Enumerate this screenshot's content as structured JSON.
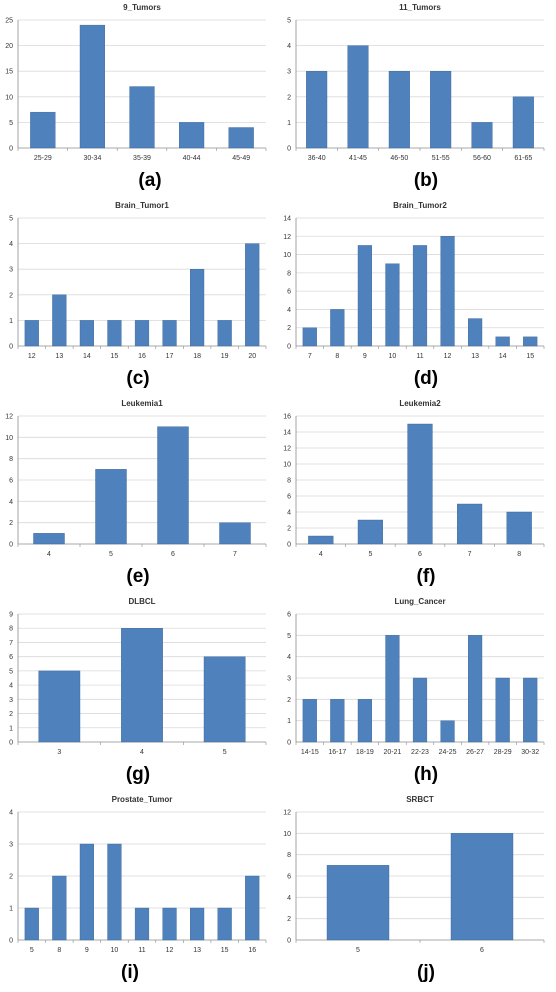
{
  "bar_color": "#4f81bd",
  "grid_color": "#d9d9d9",
  "axis_color": "#8c8c8c",
  "chart_data": [
    {
      "type": "bar",
      "panel_label": "(a)",
      "title": "9_Tumors",
      "categories": [
        "25-29",
        "30-34",
        "35-39",
        "40-44",
        "45-49"
      ],
      "values": [
        7,
        24,
        12,
        5,
        4
      ],
      "ylim": [
        0,
        25
      ],
      "yticks": [
        0,
        5,
        10,
        15,
        20,
        25
      ],
      "grid": true
    },
    {
      "type": "bar",
      "panel_label": "(b)",
      "title": "11_Tumors",
      "categories": [
        "36-40",
        "41-45",
        "46-50",
        "51-55",
        "56-60",
        "61-65"
      ],
      "values": [
        3,
        4,
        3,
        3,
        1,
        2
      ],
      "ylim": [
        0,
        5
      ],
      "yticks": [
        0,
        1,
        2,
        3,
        4,
        5
      ],
      "grid": true
    },
    {
      "type": "bar",
      "panel_label": "(c)",
      "title": "Brain_Tumor1",
      "categories": [
        "12",
        "13",
        "14",
        "15",
        "16",
        "17",
        "18",
        "19",
        "20"
      ],
      "values": [
        1,
        2,
        1,
        1,
        1,
        1,
        3,
        1,
        4
      ],
      "ylim": [
        0,
        5
      ],
      "yticks": [
        0,
        1,
        2,
        3,
        4,
        5
      ],
      "grid": true
    },
    {
      "type": "bar",
      "panel_label": "(d)",
      "title": "Brain_Tumor2",
      "categories": [
        "7",
        "8",
        "9",
        "10",
        "11",
        "12",
        "13",
        "14",
        "15"
      ],
      "values": [
        2,
        4,
        11,
        9,
        11,
        12,
        3,
        1,
        1
      ],
      "ylim": [
        0,
        14
      ],
      "yticks": [
        0,
        2,
        4,
        6,
        8,
        10,
        12,
        14
      ],
      "grid": true
    },
    {
      "type": "bar",
      "panel_label": "(e)",
      "title": "Leukemia1",
      "categories": [
        "4",
        "5",
        "6",
        "7"
      ],
      "values": [
        1,
        7,
        11,
        2
      ],
      "ylim": [
        0,
        12
      ],
      "yticks": [
        0,
        2,
        4,
        6,
        8,
        10,
        12
      ],
      "grid": true
    },
    {
      "type": "bar",
      "panel_label": "(f)",
      "title": "Leukemia2",
      "categories": [
        "4",
        "5",
        "6",
        "7",
        "8"
      ],
      "values": [
        1,
        3,
        15,
        5,
        4
      ],
      "ylim": [
        0,
        16
      ],
      "yticks": [
        0,
        2,
        4,
        6,
        8,
        10,
        12,
        14,
        16
      ],
      "grid": true
    },
    {
      "type": "bar",
      "panel_label": "(g)",
      "title": "DLBCL",
      "categories": [
        "3",
        "4",
        "5"
      ],
      "values": [
        5,
        8,
        6
      ],
      "ylim": [
        0,
        9
      ],
      "yticks": [
        0,
        1,
        2,
        3,
        4,
        5,
        6,
        7,
        8,
        9
      ],
      "grid": true
    },
    {
      "type": "bar",
      "panel_label": "(h)",
      "title": "Lung_Cancer",
      "categories": [
        "14-15",
        "16-17",
        "18-19",
        "20-21",
        "22-23",
        "24-25",
        "26-27",
        "28-29",
        "30-32"
      ],
      "values": [
        2,
        2,
        2,
        5,
        3,
        1,
        5,
        3,
        3
      ],
      "ylim": [
        0,
        6
      ],
      "yticks": [
        0,
        1,
        2,
        3,
        4,
        5,
        6
      ],
      "grid": true
    },
    {
      "type": "bar",
      "panel_label": "(i)",
      "title": "Prostate_Tumor",
      "categories": [
        "5",
        "8",
        "9",
        "10",
        "11",
        "12",
        "13",
        "15",
        "16"
      ],
      "values": [
        1,
        2,
        3,
        3,
        1,
        1,
        1,
        1,
        2
      ],
      "ylim": [
        0,
        4
      ],
      "yticks": [
        0,
        1,
        2,
        3,
        4
      ],
      "grid": true
    },
    {
      "type": "bar",
      "panel_label": "(j)",
      "title": "SRBCT",
      "categories": [
        "5",
        "6"
      ],
      "values": [
        7,
        10
      ],
      "ylim": [
        0,
        12
      ],
      "yticks": [
        0,
        2,
        4,
        6,
        8,
        10,
        12
      ],
      "grid": true
    }
  ]
}
